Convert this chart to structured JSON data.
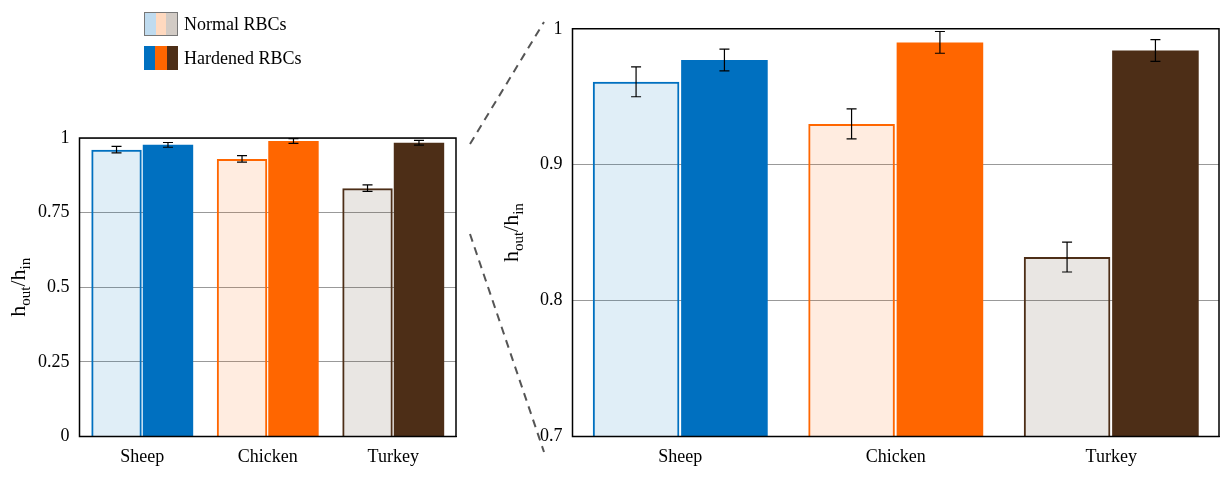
{
  "chart_data": [
    {
      "type": "bar",
      "categories": [
        "Sheep",
        "Chicken",
        "Turkey"
      ],
      "ylabel": "h$_{out}$/h$_{in}$",
      "ylim": [
        0,
        1
      ],
      "yticks": [
        0,
        0.25,
        0.5,
        0.75,
        1
      ],
      "grid": "y",
      "legend": "top left",
      "series": [
        {
          "name": "Normal RBCs",
          "colors": [
            "#0070c0",
            "#ff6600",
            "#4d2e17"
          ],
          "values": [
            0.961,
            0.93,
            0.832
          ],
          "errors": [
            0.011,
            0.011,
            0.011
          ]
        },
        {
          "name": "Hardened RBCs",
          "colors": [
            "#0070c0",
            "#ff6600",
            "#4d2e17"
          ],
          "values": [
            0.977,
            0.99,
            0.984
          ],
          "errors": [
            0.008,
            0.008,
            0.008
          ]
        }
      ]
    },
    {
      "type": "bar",
      "categories": [
        "Sheep",
        "Chicken",
        "Turkey"
      ],
      "ylabel": "h$_{out}$/h$_{in}$",
      "ylim": [
        0.7,
        1
      ],
      "yticks": [
        0.7,
        0.8,
        0.9,
        1
      ],
      "grid": "y",
      "series": [
        {
          "colors": [
            "#0070c0",
            "#ff6600",
            "#4d2e17"
          ],
          "values": [
            0.961,
            0.93,
            0.832
          ],
          "errors": [
            0.011,
            0.011,
            0.011
          ]
        },
        {
          "colors": [
            "#0070c0",
            "#ff6600",
            "#4d2e17"
          ],
          "values": [
            0.977,
            0.99,
            0.984
          ],
          "errors": [
            0.008,
            0.008,
            0.008
          ]
        }
      ]
    }
  ]
}
